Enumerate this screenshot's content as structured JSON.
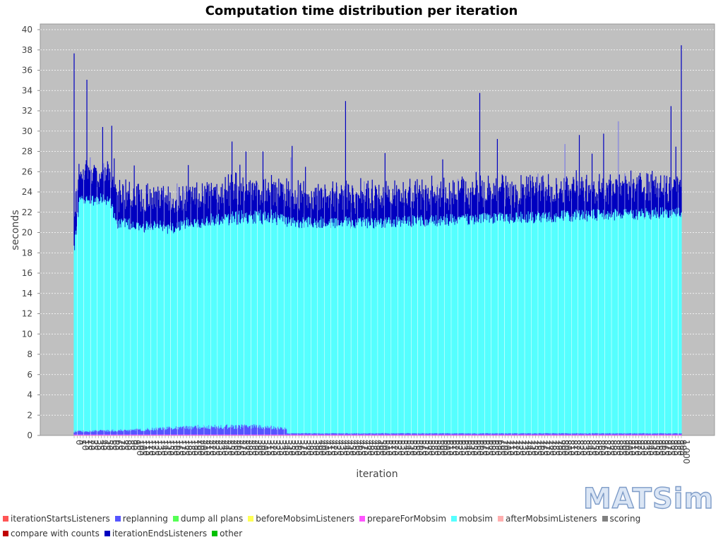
{
  "chart_data": {
    "type": "bar",
    "stacked": true,
    "title": "Computation time distribution per iteration",
    "xlabel": "iteration",
    "ylabel": "seconds",
    "ylim": [
      0,
      40
    ],
    "yticks": [
      0,
      2,
      4,
      6,
      8,
      10,
      12,
      14,
      16,
      18,
      20,
      22,
      24,
      26,
      28,
      30,
      32,
      34,
      36,
      38,
      40
    ],
    "x_range": [
      0,
      1000
    ],
    "x_first_label": "0",
    "x_last_label": "1,000",
    "grid": true,
    "legend_position": "bottom",
    "series": [
      {
        "name": "iterationStartsListeners",
        "color": "#ff5555"
      },
      {
        "name": "replanning",
        "color": "#5555ff"
      },
      {
        "name": "dump all plans",
        "color": "#55ff55"
      },
      {
        "name": "beforeMobsimListeners",
        "color": "#ffff55"
      },
      {
        "name": "prepareForMobsim",
        "color": "#ff55ff"
      },
      {
        "name": "mobsim",
        "color": "#55ffff"
      },
      {
        "name": "afterMobsimListeners",
        "color": "#ffafaf"
      },
      {
        "name": "scoring",
        "color": "#808080"
      },
      {
        "name": "compare with counts",
        "color": "#c00000"
      },
      {
        "name": "iterationEndsListeners",
        "color": "#0000c0"
      },
      {
        "name": "other",
        "color": "#00c000"
      }
    ],
    "mobsim_trend": [
      [
        0,
        18
      ],
      [
        10,
        23
      ],
      [
        60,
        22.7
      ],
      [
        70,
        20.5
      ],
      [
        150,
        19.8
      ],
      [
        250,
        20.5
      ],
      [
        350,
        20.8
      ],
      [
        500,
        20.8
      ],
      [
        700,
        21.2
      ],
      [
        900,
        21.6
      ],
      [
        1000,
        21.8
      ]
    ],
    "replanning_trend": [
      [
        0,
        0.3
      ],
      [
        100,
        0.45
      ],
      [
        200,
        0.75
      ],
      [
        300,
        0.8
      ],
      [
        350,
        0.6
      ],
      [
        351,
        0.12
      ],
      [
        1000,
        0.12
      ]
    ],
    "iterationEnds_band": 2.8,
    "spikes": [
      {
        "x": 0,
        "y": 37.7
      },
      {
        "x": 21,
        "y": 35.1
      },
      {
        "x": 447,
        "y": 33.0
      },
      {
        "x": 668,
        "y": 33.8
      },
      {
        "x": 896,
        "y": 31.0
      },
      {
        "x": 983,
        "y": 32.5
      },
      {
        "x": 1000,
        "y": 38.5
      }
    ]
  },
  "logo_text": "MATSim"
}
